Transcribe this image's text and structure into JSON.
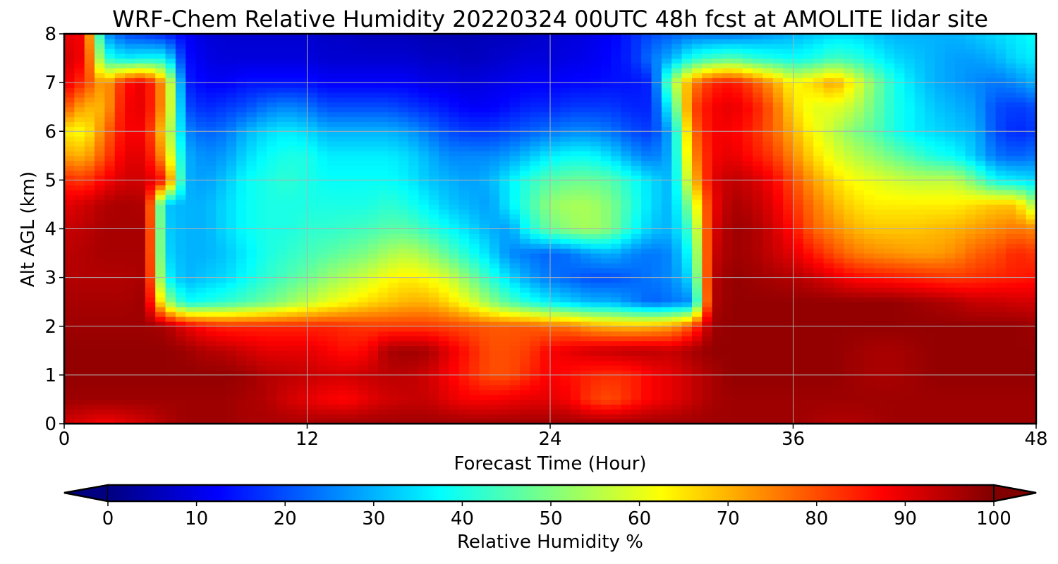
{
  "chart_data": {
    "type": "heatmap",
    "title": "WRF-Chem Relative Humidity 20220324 00UTC 48h fcst at AMOLITE lidar site",
    "xlabel": "Forecast Time (Hour)",
    "ylabel": "Alt AGL (km)",
    "xlim": [
      0,
      48
    ],
    "ylim": [
      0,
      8
    ],
    "x_ticks": [
      0,
      12,
      24,
      36,
      48
    ],
    "y_ticks": [
      0,
      1,
      2,
      3,
      4,
      5,
      6,
      7,
      8
    ],
    "grid": true,
    "colorbar": {
      "label": "Relative Humidity %",
      "min": 0,
      "max": 100,
      "ticks": [
        0,
        10,
        20,
        30,
        40,
        50,
        60,
        70,
        80,
        90,
        100
      ],
      "extend": "both",
      "colormap": "jet"
    },
    "x": [
      0,
      1,
      2,
      3,
      4,
      5,
      6,
      7,
      8,
      9,
      10,
      11,
      12,
      13,
      14,
      15,
      16,
      17,
      18,
      19,
      20,
      21,
      22,
      23,
      24,
      25,
      26,
      27,
      28,
      29,
      30,
      31,
      32,
      33,
      34,
      35,
      36,
      37,
      38,
      39,
      40,
      41,
      42,
      43,
      44,
      45,
      46,
      47,
      48
    ],
    "y": [
      0,
      0.5,
      1,
      1.5,
      2,
      2.5,
      3,
      3.5,
      4,
      4.5,
      5,
      5.5,
      6,
      6.5,
      7,
      7.5,
      8
    ],
    "z_rows_note_by_altitude": "each row is RH % along x for the altitude in y (same index)",
    "z": [
      [
        92,
        90,
        88,
        90,
        92,
        95,
        97,
        97,
        97,
        96,
        96,
        96,
        96,
        97,
        97,
        97,
        97,
        97,
        97,
        97,
        97,
        97,
        97,
        97,
        97,
        97,
        97,
        97,
        97,
        97,
        97,
        97,
        97,
        97,
        97,
        97,
        97,
        96,
        95,
        95,
        96,
        97,
        97,
        97,
        97,
        97,
        97,
        97,
        97
      ],
      [
        97,
        97,
        97,
        97,
        97,
        97,
        97,
        97,
        97,
        96,
        95,
        92,
        90,
        88,
        87,
        90,
        92,
        93,
        93,
        90,
        88,
        88,
        89,
        90,
        90,
        88,
        82,
        80,
        84,
        88,
        90,
        93,
        96,
        97,
        97,
        97,
        97,
        97,
        97,
        97,
        97,
        97,
        97,
        97,
        97,
        97,
        97,
        97,
        97
      ],
      [
        98,
        98,
        98,
        98,
        98,
        98,
        98,
        98,
        98,
        97,
        95,
        94,
        93,
        92,
        92,
        93,
        94,
        94,
        92,
        88,
        84,
        80,
        80,
        84,
        88,
        86,
        84,
        83,
        84,
        88,
        90,
        93,
        96,
        98,
        98,
        98,
        98,
        98,
        98,
        97,
        96,
        96,
        97,
        98,
        98,
        98,
        98,
        98,
        98
      ],
      [
        98,
        98,
        98,
        98,
        98,
        98,
        97,
        95,
        94,
        92,
        90,
        90,
        90,
        88,
        86,
        88,
        96,
        97,
        96,
        90,
        85,
        80,
        80,
        82,
        88,
        90,
        92,
        93,
        94,
        94,
        93,
        96,
        98,
        98,
        98,
        98,
        98,
        98,
        98,
        97,
        96,
        96,
        97,
        98,
        98,
        98,
        98,
        98,
        98
      ],
      [
        97,
        97,
        97,
        97,
        97,
        96,
        90,
        86,
        84,
        84,
        84,
        84,
        84,
        84,
        83,
        82,
        82,
        82,
        82,
        81,
        80,
        79,
        79,
        79,
        77,
        76,
        72,
        70,
        69,
        70,
        72,
        80,
        97,
        98,
        98,
        98,
        98,
        98,
        98,
        98,
        98,
        98,
        98,
        98,
        98,
        98,
        98,
        98,
        97
      ],
      [
        96,
        96,
        96,
        96,
        97,
        55,
        38,
        40,
        42,
        45,
        48,
        52,
        56,
        60,
        63,
        66,
        68,
        70,
        70,
        66,
        60,
        52,
        45,
        40,
        36,
        33,
        30,
        30,
        26,
        22,
        24,
        26,
        95,
        98,
        98,
        98,
        98,
        98,
        98,
        98,
        98,
        98,
        97,
        96,
        95,
        93,
        93,
        92,
        92
      ],
      [
        95,
        95,
        95,
        95,
        96,
        38,
        30,
        32,
        34,
        38,
        42,
        45,
        48,
        52,
        55,
        58,
        62,
        64,
        62,
        58,
        50,
        42,
        34,
        28,
        24,
        22,
        20,
        20,
        22,
        24,
        26,
        35,
        94,
        98,
        97,
        96,
        95,
        93,
        90,
        87,
        86,
        85,
        84,
        83,
        82,
        83,
        84,
        85,
        86
      ],
      [
        94,
        95,
        96,
        96,
        96,
        34,
        30,
        30,
        32,
        36,
        40,
        42,
        44,
        46,
        48,
        50,
        54,
        56,
        52,
        46,
        40,
        34,
        26,
        24,
        22,
        24,
        28,
        30,
        26,
        24,
        26,
        40,
        92,
        97,
        96,
        93,
        90,
        85,
        80,
        76,
        74,
        73,
        72,
        72,
        74,
        78,
        80,
        84,
        82
      ],
      [
        93,
        94,
        96,
        96,
        96,
        33,
        30,
        30,
        34,
        38,
        40,
        40,
        42,
        42,
        43,
        44,
        46,
        46,
        42,
        38,
        34,
        30,
        28,
        40,
        48,
        52,
        54,
        50,
        40,
        32,
        30,
        46,
        90,
        97,
        96,
        92,
        86,
        78,
        74,
        70,
        68,
        68,
        68,
        69,
        70,
        72,
        74,
        76,
        74
      ],
      [
        90,
        92,
        95,
        96,
        95,
        32,
        30,
        30,
        34,
        38,
        40,
        40,
        40,
        40,
        40,
        40,
        42,
        40,
        36,
        32,
        30,
        28,
        36,
        44,
        52,
        54,
        54,
        50,
        42,
        34,
        30,
        54,
        88,
        96,
        94,
        90,
        83,
        76,
        70,
        66,
        64,
        64,
        64,
        64,
        64,
        66,
        68,
        68,
        52
      ],
      [
        84,
        82,
        88,
        92,
        92,
        85,
        30,
        28,
        32,
        38,
        40,
        42,
        40,
        38,
        38,
        38,
        38,
        36,
        32,
        30,
        28,
        30,
        36,
        42,
        46,
        48,
        48,
        46,
        40,
        34,
        30,
        66,
        90,
        94,
        92,
        88,
        80,
        72,
        66,
        62,
        60,
        58,
        56,
        56,
        56,
        48,
        38,
        36,
        34
      ],
      [
        72,
        70,
        80,
        90,
        90,
        70,
        30,
        26,
        28,
        34,
        38,
        40,
        40,
        36,
        36,
        36,
        36,
        34,
        30,
        26,
        26,
        26,
        28,
        32,
        36,
        38,
        38,
        34,
        28,
        24,
        30,
        72,
        88,
        90,
        86,
        82,
        74,
        66,
        60,
        56,
        52,
        48,
        44,
        40,
        38,
        32,
        24,
        22,
        24
      ],
      [
        64,
        62,
        76,
        88,
        88,
        64,
        26,
        22,
        24,
        30,
        34,
        36,
        34,
        30,
        30,
        30,
        30,
        28,
        24,
        20,
        18,
        18,
        20,
        22,
        24,
        26,
        26,
        24,
        20,
        18,
        30,
        76,
        88,
        88,
        84,
        78,
        70,
        62,
        56,
        50,
        46,
        40,
        36,
        34,
        32,
        30,
        20,
        16,
        18
      ],
      [
        80,
        70,
        70,
        88,
        90,
        70,
        20,
        16,
        18,
        20,
        24,
        26,
        24,
        20,
        20,
        20,
        20,
        18,
        16,
        14,
        12,
        12,
        14,
        16,
        16,
        18,
        18,
        18,
        16,
        16,
        40,
        80,
        88,
        90,
        86,
        78,
        66,
        60,
        60,
        56,
        48,
        40,
        36,
        32,
        30,
        28,
        20,
        18,
        20
      ],
      [
        90,
        82,
        70,
        86,
        90,
        70,
        16,
        12,
        12,
        14,
        14,
        14,
        14,
        12,
        12,
        12,
        12,
        12,
        10,
        10,
        9,
        10,
        11,
        12,
        12,
        13,
        13,
        14,
        14,
        16,
        52,
        74,
        84,
        86,
        80,
        72,
        62,
        66,
        72,
        62,
        50,
        40,
        34,
        30,
        28,
        26,
        24,
        26,
        30
      ],
      [
        92,
        88,
        42,
        36,
        38,
        38,
        14,
        10,
        9,
        9,
        9,
        9,
        9,
        8,
        8,
        8,
        8,
        8,
        7,
        7,
        6,
        7,
        8,
        9,
        9,
        10,
        11,
        13,
        16,
        24,
        30,
        40,
        44,
        46,
        42,
        40,
        38,
        40,
        44,
        42,
        38,
        34,
        32,
        30,
        28,
        28,
        30,
        34,
        36
      ],
      [
        90,
        88,
        28,
        20,
        18,
        16,
        12,
        9,
        8,
        8,
        8,
        8,
        8,
        7,
        7,
        6,
        6,
        6,
        5,
        5,
        5,
        6,
        6,
        7,
        8,
        9,
        10,
        12,
        16,
        20,
        22,
        24,
        24,
        24,
        26,
        28,
        30,
        32,
        34,
        34,
        32,
        30,
        30,
        30,
        30,
        32,
        34,
        36,
        38
      ]
    ]
  }
}
